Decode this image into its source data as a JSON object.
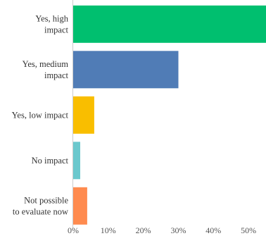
{
  "chart_data": {
    "type": "bar",
    "orientation": "horizontal",
    "categories": [
      [
        "Yes, high",
        "impact"
      ],
      [
        "Yes, medium",
        "impact"
      ],
      [
        "Yes, low impact"
      ],
      [
        "No impact"
      ],
      [
        "Not possible",
        "to evaluate now"
      ]
    ],
    "values": [
      55.0,
      30.0,
      6.0,
      2.0,
      4.0
    ],
    "colors": [
      "#00bf6f",
      "#507cb6",
      "#f9be00",
      "#6bc8cd",
      "#ff8b4f"
    ],
    "xlim": [
      0,
      55
    ],
    "xticks": [
      0,
      10,
      20,
      30,
      40,
      50
    ],
    "xtick_labels": [
      "0%",
      "10%",
      "20%",
      "30%",
      "40%",
      "50%"
    ],
    "gridlines": false,
    "axis_line_color": "#cccccc"
  }
}
